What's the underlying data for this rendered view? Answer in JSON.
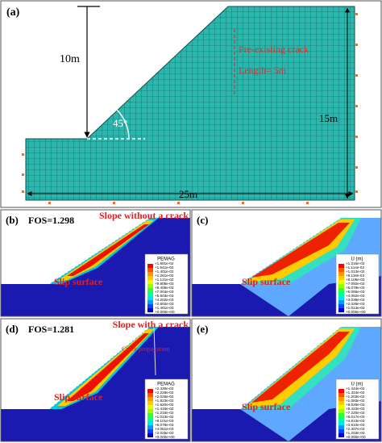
{
  "panel_a": {
    "label": "(a)",
    "height_label": "10m",
    "angle_label": "45°",
    "crack_label": "Pre-existing crack",
    "crack_length": "Length= 5m",
    "right_height": "15m",
    "width_label": "25m"
  },
  "panels": [
    {
      "label": "(b)",
      "fos": "FOS=1.298",
      "caption": "Slope without a crack",
      "slip": "Slip surface",
      "legend": {
        "title": "PEMAG",
        "values": [
          "+1.681e-02",
          "+1.541e-02",
          "+1.401e-02",
          "+1.261e-02",
          "+1.121e-02",
          "+9.805e-03",
          "+8.405e-03",
          "+7.004e-03",
          "+5.603e-03",
          "+4.202e-03",
          "+2.802e-03",
          "+1.401e-03",
          "+0.000e+00"
        ]
      }
    },
    {
      "label": "(c)",
      "slip": "Slip surface",
      "legend": {
        "title": "U (m)",
        "values": [
          "+1.216e-02",
          "+1.114e-02",
          "+1.013e-02",
          "+9.118e-03",
          "+8.105e-03",
          "+7.092e-03",
          "+6.078e-03",
          "+5.065e-03",
          "+4.052e-03",
          "+3.039e-03",
          "+2.026e-03",
          "+1.013e-03",
          "+0.000e+00"
        ]
      }
    },
    {
      "label": "(d)",
      "fos": "FOS=1.281",
      "caption": "Slope with a crack",
      "note": "Crack propagation",
      "slip": "Slip surface",
      "legend": {
        "title": "PEMAG",
        "values": [
          "+2.430e-02",
          "+2.228e-02",
          "+2.025e-02",
          "+1.823e-02",
          "+1.620e-02",
          "+1.418e-02",
          "+1.215e-02",
          "+1.013e-02",
          "+8.101e-03",
          "+6.076e-03",
          "+4.051e-03",
          "+2.025e-03",
          "+0.000e+00"
        ]
      }
    },
    {
      "label": "(e)",
      "slip": "Slip surface",
      "legend": {
        "title": "U (m)",
        "values": [
          "+1.444e-02",
          "+1.324e-02",
          "+1.203e-02",
          "+1.083e-02",
          "+9.626e-03",
          "+8.423e-03",
          "+7.220e-03",
          "+6.017e-03",
          "+4.813e-03",
          "+3.610e-03",
          "+2.407e-03",
          "+1.203e-03",
          "+0.000e+00"
        ]
      }
    }
  ]
}
